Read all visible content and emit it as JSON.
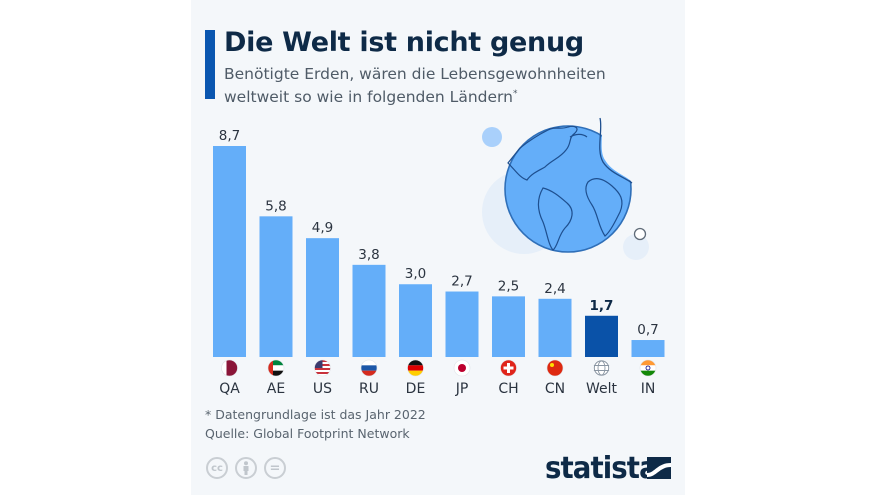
{
  "header": {
    "title": "Die Welt ist nicht genug",
    "subtitle_line1": "Benötigte Erden, wären die Lebensgewohnheiten",
    "subtitle_line2": "weltweit so wie in folgenden Ländern",
    "subtitle_mark": "*"
  },
  "chart_data": {
    "type": "bar",
    "title": "Die Welt ist nicht genug",
    "subtitle": "Benötigte Erden, wären die Lebensgewohnheiten weltweit so wie in folgenden Ländern*",
    "xlabel": "",
    "ylabel": "Benötigte Erden",
    "categories": [
      "QA",
      "AE",
      "US",
      "RU",
      "DE",
      "JP",
      "CH",
      "CN",
      "Welt",
      "IN"
    ],
    "values": [
      8.7,
      5.8,
      4.9,
      3.8,
      3.0,
      2.7,
      2.5,
      2.4,
      1.7,
      0.7
    ],
    "value_labels": [
      "8,7",
      "5,8",
      "4,9",
      "3,8",
      "3,0",
      "2,7",
      "2,5",
      "2,4",
      "1,7",
      "0,7"
    ],
    "highlight_category": "Welt",
    "icons": [
      "flag-qatar",
      "flag-uae",
      "flag-usa",
      "flag-russia",
      "flag-germany",
      "flag-japan",
      "flag-switzerland",
      "flag-china",
      "globe",
      "flag-india"
    ],
    "ylim": [
      0,
      8.7
    ],
    "grid": false,
    "legend": "none",
    "colors": {
      "bar": "#64aef9",
      "highlight": "#0a52a8"
    }
  },
  "footer": {
    "note": "* Datengrundlage ist das Jahr 2022",
    "source": "Quelle: Global Footprint Network",
    "license_icons": [
      "cc-icon",
      "by-icon",
      "nd-icon"
    ],
    "cc_text": "cc",
    "nd_text": "=",
    "brand": "statista"
  },
  "colors": {
    "accent": "#0a56b0",
    "title": "#0e2a47",
    "background": "#f4f7fa"
  }
}
